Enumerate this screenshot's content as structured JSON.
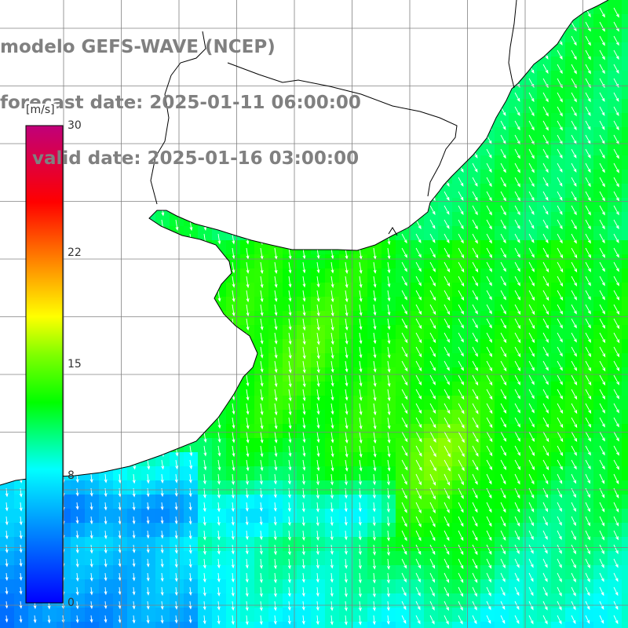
{
  "title": {
    "line1": "modelo GEFS-WAVE (NCEP)",
    "line2": "forecast date: 2025-01-11 06:00:00",
    "line3": "valid date: 2025-01-16 03:00:00"
  },
  "colorbar": {
    "units": "[m/s]",
    "ticks": [
      {
        "value": 30,
        "label": "30"
      },
      {
        "value": 22,
        "label": "22"
      },
      {
        "value": 15,
        "label": "15"
      },
      {
        "value": 8,
        "label": "8"
      },
      {
        "value": 0,
        "label": "0"
      }
    ],
    "min": 0,
    "max": 30
  },
  "map": {
    "variable": "wind speed",
    "units": "m/s",
    "arrow_direction": "southward",
    "colors": {
      "land": "#ffffff",
      "coastline": "#000000",
      "grid": "#808080",
      "arrow": "#ffffff"
    }
  }
}
